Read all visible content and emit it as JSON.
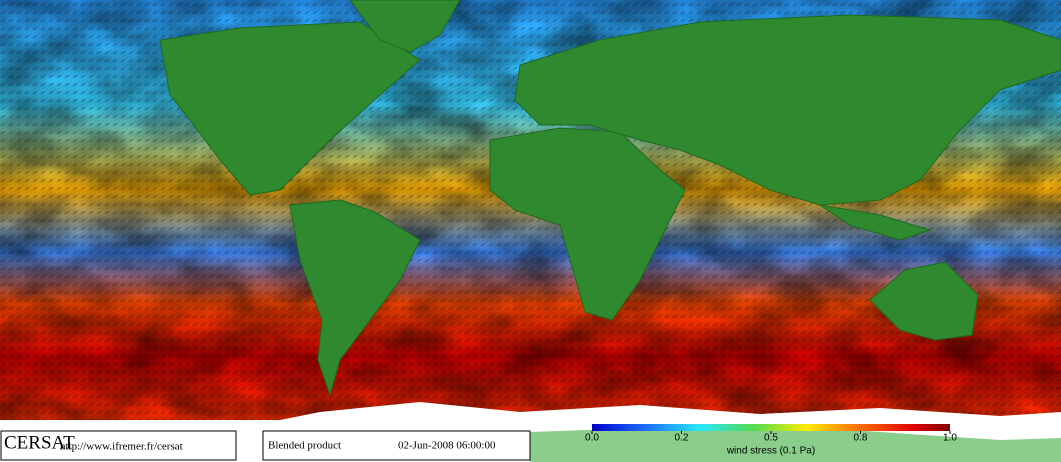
{
  "footer": {
    "logo": "CERSAT",
    "url": "http://www.ifremer.fr/cersat",
    "product": "Blended product",
    "date": "02-Jun-2008 06:00:00"
  },
  "colorbar": {
    "label": "wind stress (0.1 Pa)",
    "lim": [
      0,
      1
    ],
    "ticks": [
      {
        "value": 0,
        "label": "0.0"
      },
      0.2,
      0.5,
      0.8,
      {
        "value": 1,
        "label": "1.0"
      }
    ]
  }
}
